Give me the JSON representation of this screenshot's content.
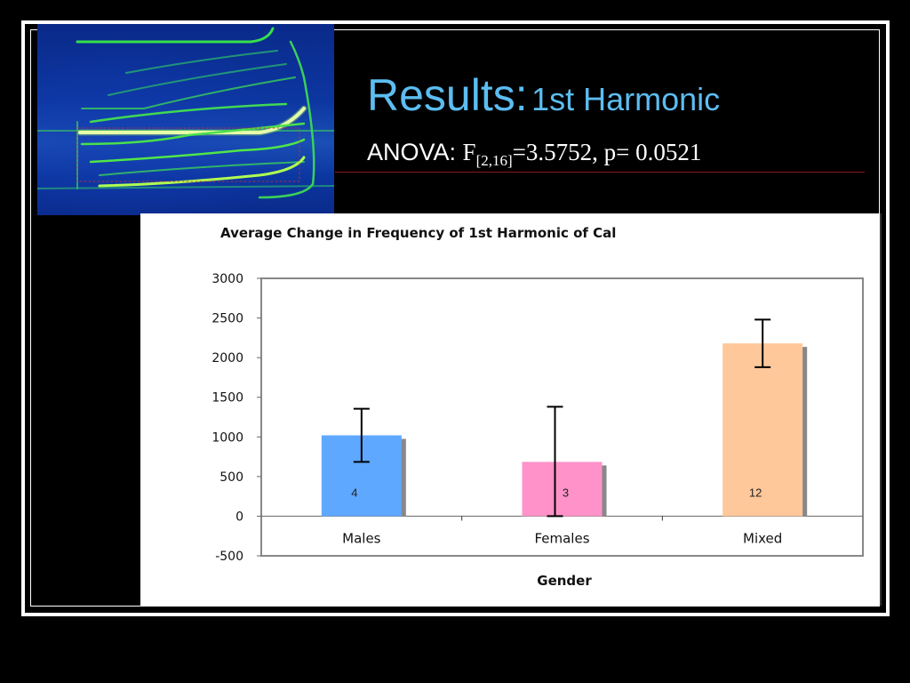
{
  "slide": {
    "title_main": "Results:",
    "title_sub": "1st Harmonic",
    "anova_label": "ANOVA:",
    "anova_stat_symbol": "F",
    "anova_df": "[2,16]",
    "anova_rest": "=3.5752, p= 0.0521",
    "colors": {
      "background": "#000000",
      "title": "#5cbdf1",
      "rule": "#8b1a1a",
      "frame": "#ffffff"
    },
    "image": {
      "description": "spectrogram-image"
    }
  },
  "chart_data": {
    "type": "bar",
    "title": "Average Change in Frequency of 1st Harmonic of Cal",
    "xlabel": "Gender",
    "ylabel": "",
    "categories": [
      "Males",
      "Females",
      "Mixed"
    ],
    "values": [
      1020,
      685,
      2180
    ],
    "error_bars": [
      {
        "low": 685,
        "high": 1355
      },
      {
        "low": 0,
        "high": 1380
      },
      {
        "low": 1880,
        "high": 2480
      }
    ],
    "bar_labels": [
      "4",
      "3",
      "12"
    ],
    "bar_colors": [
      "#5fa8ff",
      "#ff92c8",
      "#ffc89a"
    ],
    "ylim": [
      -500,
      3000
    ],
    "yticks": [
      "3000",
      "2500",
      "2000",
      "1500",
      "1000",
      "500",
      "0",
      "-500"
    ],
    "grid": false,
    "legend": null
  }
}
